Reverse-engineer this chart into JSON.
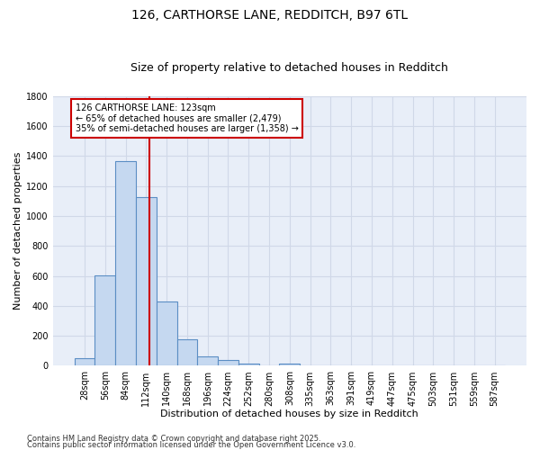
{
  "title1": "126, CARTHORSE LANE, REDDITCH, B97 6TL",
  "title2": "Size of property relative to detached houses in Redditch",
  "xlabel": "Distribution of detached houses by size in Redditch",
  "ylabel": "Number of detached properties",
  "categories": [
    "28sqm",
    "56sqm",
    "84sqm",
    "112sqm",
    "140sqm",
    "168sqm",
    "196sqm",
    "224sqm",
    "252sqm",
    "280sqm",
    "308sqm",
    "335sqm",
    "363sqm",
    "391sqm",
    "419sqm",
    "447sqm",
    "475sqm",
    "503sqm",
    "531sqm",
    "559sqm",
    "587sqm"
  ],
  "values": [
    50,
    605,
    1365,
    1125,
    430,
    175,
    65,
    38,
    15,
    0,
    15,
    0,
    0,
    0,
    0,
    0,
    0,
    0,
    0,
    0,
    0
  ],
  "bar_color": "#c5d8f0",
  "bar_edge_color": "#5b8ec4",
  "vline_x": 3.18,
  "vline_color": "#cc0000",
  "annotation_line1": "126 CARTHORSE LANE: 123sqm",
  "annotation_line2": "← 65% of detached houses are smaller (2,479)",
  "annotation_line3": "35% of semi-detached houses are larger (1,358) →",
  "annotation_box_color": "#cc0000",
  "ylim": [
    0,
    1800
  ],
  "yticks": [
    0,
    200,
    400,
    600,
    800,
    1000,
    1200,
    1400,
    1600,
    1800
  ],
  "bg_color": "#e8eef8",
  "grid_color": "#d0d8e8",
  "footer1": "Contains HM Land Registry data © Crown copyright and database right 2025.",
  "footer2": "Contains public sector information licensed under the Open Government Licence v3.0.",
  "title1_fontsize": 10,
  "title2_fontsize": 9,
  "axis_label_fontsize": 8,
  "tick_fontsize": 7,
  "annotation_fontsize": 7,
  "footer_fontsize": 6
}
